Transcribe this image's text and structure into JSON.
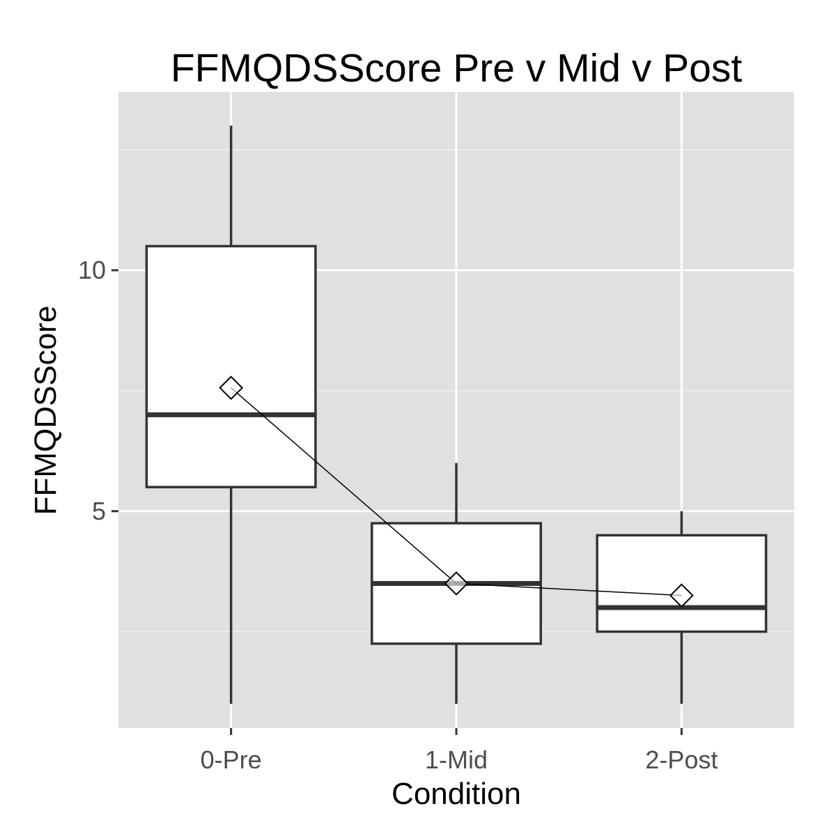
{
  "chart_data": {
    "type": "box",
    "title": "FFMQDSScore Pre v Mid v Post",
    "xlabel": "Condition",
    "ylabel": "FFMQDSScore",
    "categories": [
      "0-Pre",
      "1-Mid",
      "2-Post"
    ],
    "ylim": [
      0.5,
      13.7
    ],
    "yticks": [
      5,
      10
    ],
    "yticks_labels": [
      "5",
      "10"
    ],
    "boxes": [
      {
        "category": "0-Pre",
        "lower_whisker": 1,
        "q1": 5.5,
        "median": 7,
        "q3": 10.5,
        "upper_whisker": 13,
        "mean": 7.56
      },
      {
        "category": "1-Mid",
        "lower_whisker": 1,
        "q1": 2.25,
        "median": 3.5,
        "q3": 4.75,
        "upper_whisker": 6,
        "mean": 3.5
      },
      {
        "category": "2-Post",
        "lower_whisker": 1,
        "q1": 2.5,
        "median": 3,
        "q3": 4.5,
        "upper_whisker": 5,
        "mean": 3.25
      }
    ],
    "mean_line": true,
    "grid": true,
    "colors": {
      "panel": "#e0e0e0",
      "grid_major": "#ffffff",
      "grid_minor": "#f0f0f0",
      "box_fill": "#ffffff",
      "box_stroke": "#333333",
      "tick_label": "#4d4d4d"
    }
  }
}
